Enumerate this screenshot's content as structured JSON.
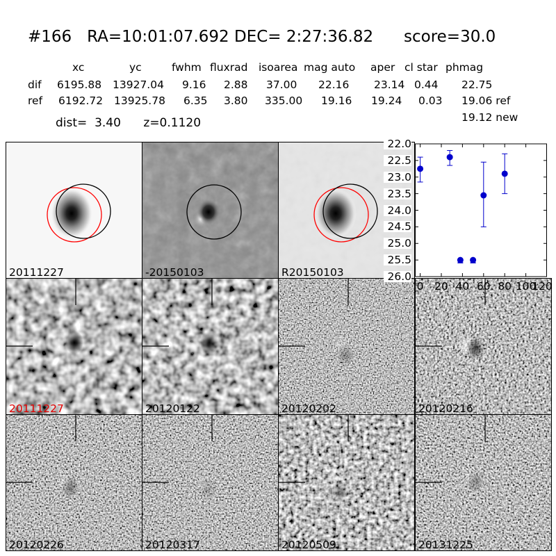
{
  "title": {
    "id": "#166",
    "radec": "RA=10:01:07.692 DEC= 2:27:36.82",
    "score": "score=30.0"
  },
  "table": {
    "headers": [
      "xc",
      "yc",
      "fwhm",
      "fluxrad",
      "isoarea",
      "mag auto",
      "aper",
      "cl star",
      "phmag"
    ],
    "rows": [
      {
        "label": "dif",
        "values": [
          "6195.88",
          "13927.04",
          "9.16",
          "2.88",
          "37.00",
          "22.16",
          "23.14",
          "0.44",
          "22.75"
        ]
      },
      {
        "label": "ref",
        "values": [
          "6192.72",
          "13925.78",
          "6.35",
          "3.80",
          "335.00",
          "19.16",
          "19.24",
          "0.03",
          "19.06 ref"
        ]
      }
    ],
    "extra_phmag": "19.12 new"
  },
  "info": {
    "dist": "dist=  3.40",
    "z": "z=0.1120"
  },
  "top_panels": [
    {
      "label": "20111227",
      "style": "ref"
    },
    {
      "label": "-20150103",
      "style": "diff"
    },
    {
      "label": "R20150103",
      "style": "ref2"
    }
  ],
  "grid_panels": [
    {
      "label": "20111227",
      "highlight": true
    },
    {
      "label": "20120122",
      "highlight": false
    },
    {
      "label": "20120202",
      "highlight": false
    },
    {
      "label": "20120216",
      "highlight": false
    },
    {
      "label": "20120226",
      "highlight": false
    },
    {
      "label": "20120317",
      "highlight": false
    },
    {
      "label": "20120509",
      "highlight": false
    },
    {
      "label": "20131225",
      "highlight": false
    }
  ],
  "colors": {
    "highlight_label": "#e00000",
    "point": "#0000cc",
    "circle_red": "#ff0000",
    "circle_black": "#000000"
  },
  "chart_data": {
    "type": "scatter",
    "x": [
      0,
      28,
      38,
      50,
      60,
      80
    ],
    "y": [
      22.75,
      22.4,
      25.5,
      25.5,
      23.55,
      22.9
    ],
    "yerr_low": [
      0.35,
      0.2,
      0.0,
      0.0,
      1.0,
      0.6
    ],
    "yerr_high": [
      0.4,
      0.25,
      0.0,
      0.0,
      0.95,
      0.6
    ],
    "xlim": [
      -5,
      120
    ],
    "ylim": [
      26.0,
      22.0
    ],
    "xticks": [
      "0",
      "20",
      "40",
      "60",
      "80",
      "100",
      "120"
    ],
    "yticks": [
      "22.0",
      "22.5",
      "23.0",
      "23.5",
      "24.0",
      "24.5",
      "25.0",
      "25.5",
      "26.0"
    ]
  }
}
